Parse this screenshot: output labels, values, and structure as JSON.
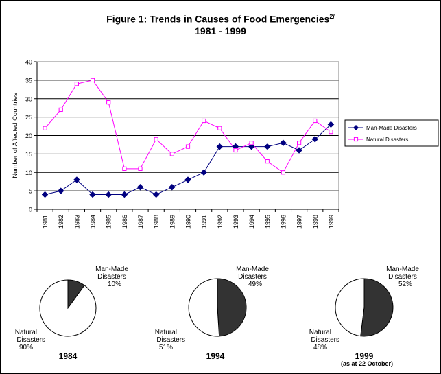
{
  "page": {
    "title": "Figure 1: Trends in Causes of Food Emergencies",
    "title_superscript": "2/",
    "subtitle": "1981 - 1999"
  },
  "chart_data": [
    {
      "type": "line",
      "ylabel": "Number of Affected Countries",
      "xlabel": "",
      "ylim": [
        0,
        40
      ],
      "yticks": [
        0,
        5,
        10,
        15,
        20,
        25,
        30,
        35,
        40
      ],
      "grid": true,
      "legend_position": "right",
      "x": [
        "1981",
        "1982",
        "1983",
        "1984",
        "1985",
        "1986",
        "1987",
        "1988",
        "1989",
        "1990",
        "1991",
        "1992",
        "1993",
        "1994",
        "1995",
        "1996",
        "1997",
        "1998",
        "1999"
      ],
      "series": [
        {
          "name": "Man-Made Disasters",
          "color": "#000080",
          "marker": "diamond",
          "values": [
            4,
            5,
            8,
            4,
            4,
            4,
            6,
            4,
            6,
            8,
            10,
            17,
            17,
            17,
            17,
            18,
            16,
            19,
            23
          ]
        },
        {
          "name": "Natural Disasters",
          "color": "#ff00ff",
          "marker": "open-square",
          "values": [
            22,
            27,
            34,
            35,
            29,
            11,
            11,
            19,
            15,
            17,
            24,
            22,
            16,
            18,
            13,
            10,
            18,
            24,
            21
          ]
        }
      ]
    },
    {
      "type": "pie",
      "year_label": "1984",
      "note": "",
      "slices": [
        {
          "label": "Man-Made Disasters",
          "label_lines": [
            "Man-Made",
            "Disasters"
          ],
          "percent_text": "10%",
          "value": 10,
          "color": "#333333"
        },
        {
          "label": "Natural Disasters",
          "label_lines": [
            "Natural",
            "Disasters"
          ],
          "percent_text": "90%",
          "value": 90,
          "color": "#ffffff"
        }
      ]
    },
    {
      "type": "pie",
      "year_label": "1994",
      "note": "",
      "slices": [
        {
          "label": "Man-Made Disasters",
          "label_lines": [
            "Man-Made",
            "Disasters"
          ],
          "percent_text": "49%",
          "value": 49,
          "color": "#333333"
        },
        {
          "label": "Natural Disasters",
          "label_lines": [
            "Natural",
            "Disasters"
          ],
          "percent_text": "51%",
          "value": 51,
          "color": "#ffffff"
        }
      ]
    },
    {
      "type": "pie",
      "year_label": "1999",
      "note": "(as at 22 October)",
      "slices": [
        {
          "label": "Man-Made Disasters",
          "label_lines": [
            "Man-Made",
            "Disasters"
          ],
          "percent_text": "52%",
          "value": 52,
          "color": "#333333"
        },
        {
          "label": "Natural Disasters",
          "label_lines": [
            "Natural",
            "Disasters"
          ],
          "percent_text": "48%",
          "value": 48,
          "color": "#ffffff"
        }
      ]
    }
  ]
}
